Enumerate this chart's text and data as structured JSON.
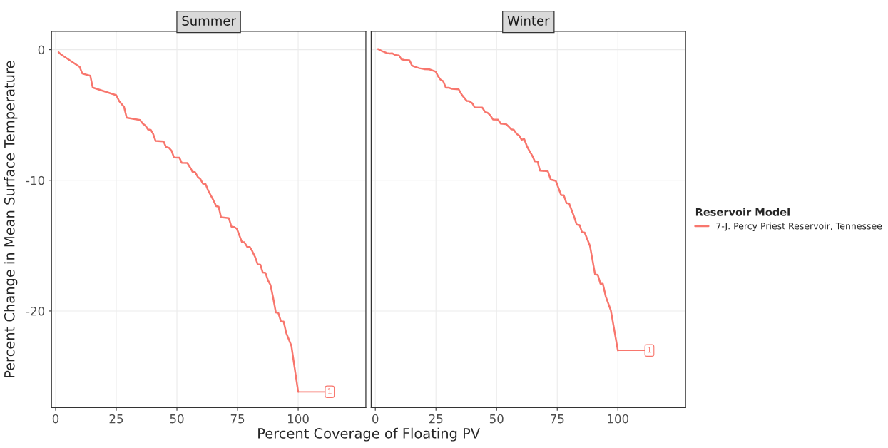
{
  "chart_data": [
    {
      "type": "line",
      "title": "Summer",
      "xlabel": "Percent Coverage of Floating PV",
      "ylabel": "Percent Change in Mean Surface Temperature",
      "xlim": [
        -1.7,
        127.9
      ],
      "ylim": [
        -27.4,
        1.4
      ],
      "xticks": [
        0,
        25,
        50,
        75,
        100
      ],
      "yticks": [
        {
          "value": -20,
          "label": "-20"
        },
        {
          "value": -10,
          "label": "-10"
        },
        0
      ],
      "grid": true,
      "legend": false,
      "series": [
        {
          "color": "#f8766d",
          "x": [
            1.2,
            2.3,
            9.9,
            11.0,
            14.3,
            15.3,
            25.0,
            26.2,
            28.2,
            29.3,
            34.8,
            35.9,
            37.0,
            38.1,
            39.2,
            40.2,
            41.2,
            44.5,
            45.5,
            46.7,
            47.8,
            48.8,
            51.0,
            52.0,
            54.3,
            55.4,
            56.4,
            57.5,
            58.6,
            59.7,
            60.7,
            61.8,
            62.9,
            65.0,
            66.2,
            67.2,
            68.2,
            71.4,
            72.5,
            73.5,
            74.7,
            76.8,
            77.8,
            79.0,
            80.1,
            81.1,
            82.3,
            83.3,
            84.4,
            85.4,
            86.5,
            87.6,
            88.6,
            89.6,
            90.8,
            91.8,
            92.9,
            94.0,
            95.1,
            97.2,
            100
          ],
          "values": [
            -0.19,
            -0.38,
            -1.32,
            -1.83,
            -2.0,
            -2.9,
            -3.49,
            -3.94,
            -4.38,
            -5.21,
            -5.38,
            -5.66,
            -5.81,
            -6.11,
            -6.13,
            -6.45,
            -6.98,
            -7.02,
            -7.45,
            -7.51,
            -7.74,
            -8.25,
            -8.26,
            -8.66,
            -8.68,
            -9.0,
            -9.34,
            -9.38,
            -9.74,
            -9.91,
            -10.26,
            -10.28,
            -10.79,
            -11.51,
            -11.98,
            -12.02,
            -12.83,
            -12.89,
            -13.55,
            -13.57,
            -13.7,
            -14.72,
            -14.74,
            -15.09,
            -15.11,
            -15.43,
            -15.89,
            -16.42,
            -16.45,
            -17.06,
            -17.08,
            -17.68,
            -18.02,
            -18.91,
            -20.11,
            -20.15,
            -20.79,
            -20.81,
            -21.7,
            -22.66,
            -26.19
          ]
        }
      ],
      "annotations": [
        {
          "text": "1",
          "x": 113,
          "y": -26.19
        }
      ]
    },
    {
      "type": "line",
      "title": "Winter",
      "xlim": [
        -1.7,
        127.9
      ],
      "ylim": [
        -27.4,
        1.4
      ],
      "xticks": [
        0,
        25,
        50,
        75,
        100
      ],
      "yticks": [
        -20,
        -10,
        0
      ],
      "grid": true,
      "tick_labels": "x",
      "legend": "right",
      "legend_title": "Reservoir Model",
      "series": [
        {
          "name": "7-J. Percy Priest Reservoir, Tennessee",
          "color": "#f8766d",
          "x": [
            1.1,
            2.8,
            4.8,
            5.9,
            6.9,
            8.4,
            9.8,
            10.8,
            12.0,
            14.1,
            15.1,
            16.1,
            18.2,
            20.2,
            22.3,
            24.9,
            25.9,
            26.9,
            28.0,
            29.1,
            30.2,
            31.6,
            34.4,
            35.7,
            37.7,
            38.7,
            40.0,
            41.0,
            44.1,
            45.2,
            46.3,
            47.4,
            48.5,
            50.6,
            51.7,
            53.9,
            55.0,
            56.0,
            57.1,
            58.3,
            59.3,
            60.3,
            61.4,
            62.6,
            63.6,
            64.7,
            65.8,
            66.9,
            67.9,
            71.1,
            72.3,
            74.4,
            76.6,
            77.7,
            78.8,
            79.9,
            82.0,
            83.0,
            84.2,
            85.2,
            86.3,
            88.5,
            90.6,
            91.7,
            92.8,
            93.8,
            95.0,
            97.1,
            100
          ],
          "values": [
            0.05,
            -0.11,
            -0.26,
            -0.3,
            -0.28,
            -0.42,
            -0.45,
            -0.74,
            -0.79,
            -0.81,
            -1.21,
            -1.3,
            -1.42,
            -1.49,
            -1.51,
            -1.68,
            -2.04,
            -2.3,
            -2.42,
            -2.91,
            -2.91,
            -3.0,
            -3.04,
            -3.47,
            -3.92,
            -3.94,
            -4.11,
            -4.43,
            -4.43,
            -4.75,
            -4.83,
            -5.02,
            -5.34,
            -5.36,
            -5.66,
            -5.7,
            -5.89,
            -6.09,
            -6.13,
            -6.45,
            -6.57,
            -6.89,
            -6.85,
            -7.43,
            -7.77,
            -8.11,
            -8.55,
            -8.55,
            -9.26,
            -9.3,
            -9.94,
            -10.04,
            -11.13,
            -11.15,
            -11.74,
            -11.77,
            -12.81,
            -13.38,
            -13.42,
            -13.96,
            -14.0,
            -15.02,
            -17.21,
            -17.23,
            -17.91,
            -17.92,
            -18.89,
            -19.96,
            -23.02
          ]
        }
      ],
      "annotations": [
        {
          "text": "1",
          "x": 113,
          "y": -23.02
        }
      ]
    }
  ]
}
